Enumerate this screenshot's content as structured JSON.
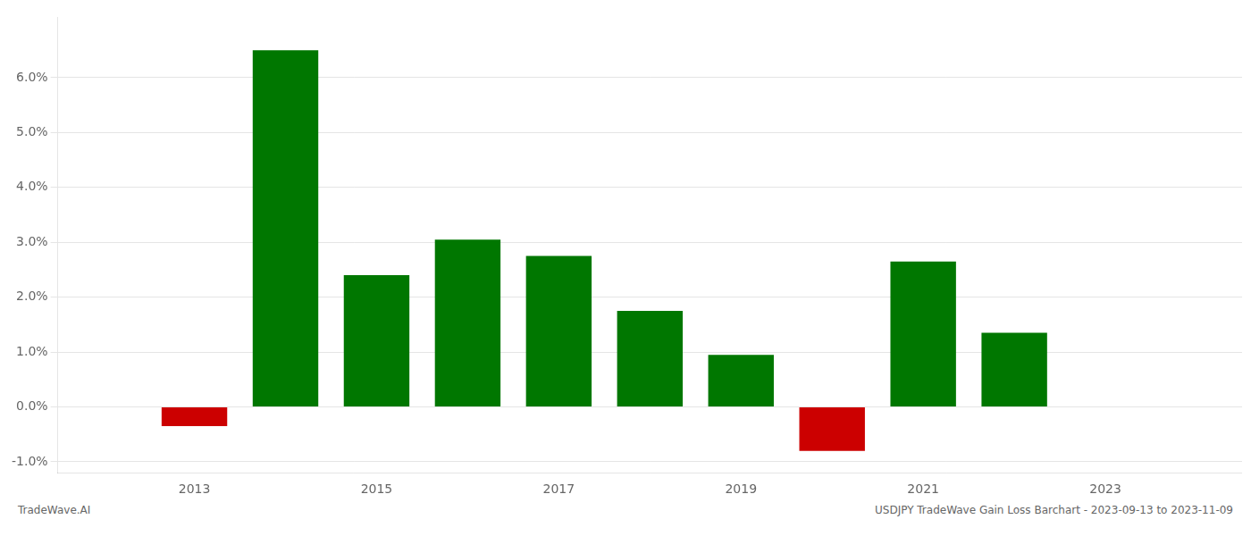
{
  "chart_data": {
    "type": "bar",
    "x": [
      2013,
      2014,
      2015,
      2016,
      2017,
      2018,
      2019,
      2020,
      2021,
      2022
    ],
    "values": [
      -0.0035,
      0.065,
      0.024,
      0.0305,
      0.0275,
      0.0175,
      0.0095,
      -0.008,
      0.0265,
      0.0135
    ],
    "colors": [
      "#cc0000",
      "#007700",
      "#007700",
      "#007700",
      "#007700",
      "#007700",
      "#007700",
      "#cc0000",
      "#007700",
      "#007700"
    ],
    "xlim": [
      2011.5,
      2024.5
    ],
    "xticks": [
      2013,
      2015,
      2017,
      2019,
      2021,
      2023
    ],
    "ylim": [
      -0.012,
      0.071
    ],
    "yticks": [
      {
        "value": -0.01,
        "label": "-1.0%"
      },
      {
        "value": 0.0,
        "label": "0.0%"
      },
      {
        "value": 0.01,
        "label": "1.0%"
      },
      {
        "value": 0.02,
        "label": "2.0%"
      },
      {
        "value": 0.03,
        "label": "3.0%"
      },
      {
        "value": 0.04,
        "label": "4.0%"
      },
      {
        "value": 0.05,
        "label": "5.0%"
      },
      {
        "value": 0.06,
        "label": "6.0%"
      }
    ],
    "grid": "y",
    "annotations": [
      "TradeWave.AI",
      "USDJPY TradeWave Gain Loss Barchart - 2023-09-13 to 2023-11-09"
    ]
  }
}
